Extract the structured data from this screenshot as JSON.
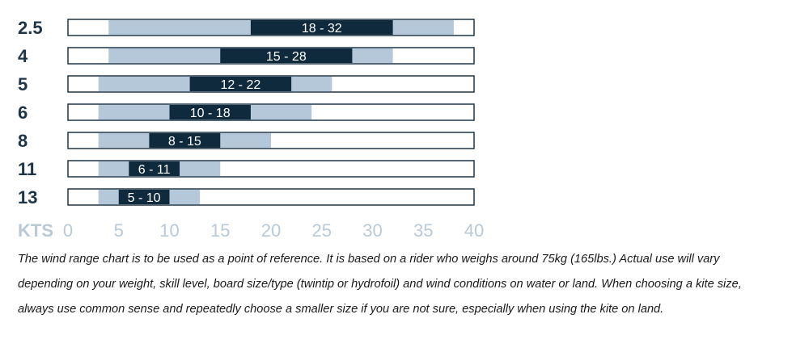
{
  "chart_data": {
    "type": "bar",
    "subtype": "range",
    "x_unit_label": "KTS",
    "xlim": [
      0,
      40
    ],
    "xticks": [
      "0",
      "5",
      "10",
      "15",
      "20",
      "25",
      "30",
      "35",
      "40"
    ],
    "categories": [
      "2.5",
      "4",
      "5",
      "6",
      "8",
      "11",
      "13"
    ],
    "ranges": [
      {
        "size": "2.5",
        "label": "18 - 32",
        "core": [
          18,
          32
        ],
        "extended": [
          4,
          38
        ]
      },
      {
        "size": "4",
        "label": "15 - 28",
        "core": [
          15,
          28
        ],
        "extended": [
          4,
          32
        ]
      },
      {
        "size": "5",
        "label": "12 - 22",
        "core": [
          12,
          22
        ],
        "extended": [
          3,
          26
        ]
      },
      {
        "size": "6",
        "label": "10 - 18",
        "core": [
          10,
          18
        ],
        "extended": [
          3,
          24
        ]
      },
      {
        "size": "8",
        "label": "8 - 15",
        "core": [
          8,
          15
        ],
        "extended": [
          3,
          20
        ]
      },
      {
        "size": "11",
        "label": "6 - 11",
        "core": [
          6,
          11
        ],
        "extended": [
          3,
          15
        ]
      },
      {
        "size": "13",
        "label": "5 - 10",
        "core": [
          5,
          10
        ],
        "extended": [
          3,
          13
        ]
      }
    ],
    "colors": {
      "core": "#0f2a3d",
      "extended": "#b4c8da",
      "outline": "#1d3547",
      "text": "#1d3547",
      "axis_text": "#b9c9d8"
    }
  },
  "caption": [
    "The wind range chart is to be used as a point of reference. It is based on a rider who weighs around 75kg (165lbs.) Actual use will vary",
    "depending on your weight, skill level, board size/type (twintip or hydrofoil) and wind conditions on water or land. When choosing a kite size,",
    "always use common sense and repeatedly choose a smaller size if you are not sure, especially when using the kite on land."
  ]
}
